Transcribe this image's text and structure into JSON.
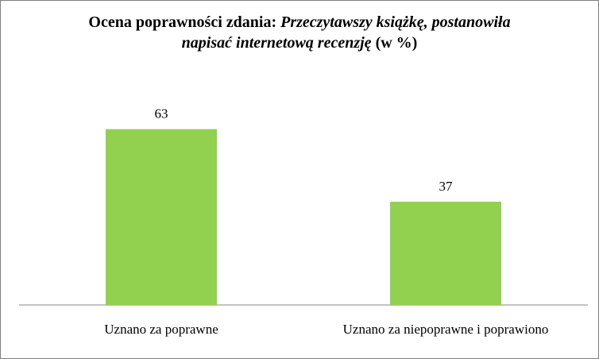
{
  "chart_data": {
    "type": "bar",
    "title_parts": [
      {
        "text": "Ocena poprawności zdania: ",
        "italic": false
      },
      {
        "text": "Przeczytawszy książkę, postanowiła napisać internetową recenzję",
        "italic": true
      },
      {
        "text": " (w %)",
        "italic": false
      }
    ],
    "categories": [
      "Uznano za poprawne",
      "Uznano za niepoprawne i poprawiono"
    ],
    "values": [
      63,
      37
    ],
    "data_labels": [
      "63",
      "37"
    ],
    "bar_color": "#92d050",
    "axis_color": "#868686",
    "ylim": [
      0,
      70
    ],
    "grid": false,
    "legend": "none"
  }
}
